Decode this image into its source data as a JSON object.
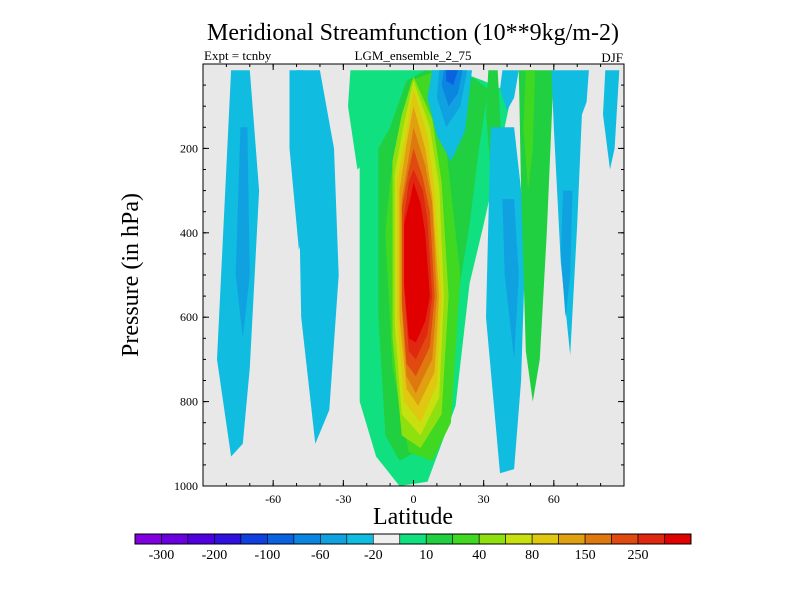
{
  "chart_data": {
    "type": "contour",
    "title": "Meridional Streamfunction (10**9kg/m-2)",
    "subtitle_left": "Expt = tcnby",
    "subtitle_center": "LGM_ensemble_2_75",
    "subtitle_right": "DJF",
    "xlabel": "Latitude",
    "ylabel": "Pressure (in hPa)",
    "xlim": [
      -90,
      90
    ],
    "ylim": [
      1000,
      0
    ],
    "xticks": [
      -60,
      -30,
      0,
      30,
      60
    ],
    "xtick_labels": [
      "-60",
      "-30",
      "0",
      "30",
      "60"
    ],
    "yticks": [
      200,
      400,
      600,
      800,
      1000
    ],
    "ytick_labels": [
      "200",
      "400",
      "600",
      "800",
      "1000"
    ],
    "background_color": "#e8e8e8",
    "colorbar": {
      "colors": [
        "#8000e0",
        "#6a00e0",
        "#5000e0",
        "#3010e0",
        "#1040e0",
        "#0a62e0",
        "#0a86e0",
        "#10a2e0",
        "#10bce0",
        "#f0f0f0",
        "#10e080",
        "#20d040",
        "#40d820",
        "#90e010",
        "#c8e010",
        "#e0c810",
        "#e0a010",
        "#e07810",
        "#e04a10",
        "#e02810",
        "#e00000"
      ],
      "labels": [
        "-300",
        "-200",
        "-100",
        "-60",
        "-20",
        "10",
        "40",
        "80",
        "150",
        "250"
      ]
    },
    "fields": [
      {
        "name": "sh-deep-negative-cell",
        "level": 8,
        "x": [
          -78,
          -70,
          -66,
          -70,
          -73,
          -78,
          -84
        ],
        "y": [
          15,
          15,
          300,
          720,
          900,
          930,
          700
        ]
      },
      {
        "name": "sh-deep-negative-core",
        "level": 7,
        "x": [
          -74,
          -71,
          -70,
          -73,
          -76
        ],
        "y": [
          150,
          150,
          500,
          650,
          500
        ]
      },
      {
        "name": "sh-mid-negative-cell",
        "level": 8,
        "x": [
          -50,
          -40,
          -34,
          -32,
          -36,
          -42,
          -48
        ],
        "y": [
          15,
          15,
          200,
          500,
          820,
          900,
          600
        ]
      },
      {
        "name": "sh-upper-negative-lobe",
        "level": 8,
        "x": [
          -53,
          -47,
          -43,
          -45,
          -49,
          -53
        ],
        "y": [
          15,
          15,
          220,
          370,
          440,
          200
        ]
      },
      {
        "name": "sh-upper-positive-lobe",
        "level": 10,
        "x": [
          -27,
          -15,
          -18,
          -24,
          -28
        ],
        "y": [
          15,
          15,
          220,
          250,
          100
        ]
      },
      {
        "name": "positive-band-l1",
        "level": 10,
        "x": [
          -23,
          -15,
          -5,
          3,
          18,
          30,
          42,
          36,
          30,
          24,
          18,
          6,
          -6,
          -16,
          -23
        ],
        "y": [
          70,
          15,
          15,
          15,
          15,
          40,
          70,
          230,
          380,
          520,
          810,
          990,
          1000,
          930,
          800
        ]
      },
      {
        "name": "positive-band-l2",
        "level": 11,
        "x": [
          -15,
          -10,
          -3,
          5,
          15,
          25,
          32,
          28,
          24,
          14,
          4,
          -6,
          -12,
          -15
        ],
        "y": [
          200,
          150,
          40,
          15,
          20,
          30,
          60,
          200,
          380,
          720,
          910,
          940,
          880,
          600
        ]
      },
      {
        "name": "positive-band-l3",
        "level": 12,
        "x": [
          -10,
          -6,
          -1,
          8,
          14,
          20,
          16,
          8,
          -2,
          -9,
          -12
        ],
        "y": [
          280,
          150,
          40,
          20,
          200,
          500,
          850,
          940,
          920,
          720,
          400
        ]
      },
      {
        "name": "positive-band-l4",
        "level": 13,
        "x": [
          -9,
          -5,
          0,
          8,
          12,
          15,
          12,
          3,
          -5,
          -9
        ],
        "y": [
          230,
          120,
          30,
          130,
          280,
          550,
          830,
          910,
          880,
          650
        ]
      },
      {
        "name": "positive-band-l5",
        "level": 14,
        "x": [
          -8,
          -4,
          0,
          7,
          11,
          13,
          11,
          3,
          -5,
          -8
        ],
        "y": [
          260,
          140,
          40,
          150,
          290,
          550,
          790,
          880,
          830,
          620
        ]
      },
      {
        "name": "positive-band-l6",
        "level": 15,
        "x": [
          -7,
          -3,
          0,
          6,
          9,
          12,
          10,
          3,
          -4,
          -7
        ],
        "y": [
          280,
          160,
          60,
          170,
          300,
          550,
          760,
          850,
          800,
          600
        ]
      },
      {
        "name": "positive-band-l7",
        "level": 16,
        "x": [
          -6,
          -3,
          0,
          5,
          8,
          11,
          9,
          2,
          -3,
          -6
        ],
        "y": [
          300,
          190,
          100,
          200,
          310,
          550,
          730,
          810,
          770,
          600
        ]
      },
      {
        "name": "positive-band-l8",
        "level": 17,
        "x": [
          -5,
          -2,
          0,
          5,
          8,
          10,
          8,
          1,
          -3,
          -5
        ],
        "y": [
          320,
          220,
          150,
          240,
          330,
          550,
          700,
          780,
          740,
          580
        ]
      },
      {
        "name": "positive-band-l9",
        "level": 18,
        "x": [
          -5,
          -2,
          0,
          4,
          7,
          9,
          7,
          1,
          -3,
          -5
        ],
        "y": [
          340,
          250,
          200,
          270,
          350,
          550,
          670,
          740,
          710,
          560
        ]
      },
      {
        "name": "positive-band-l10",
        "level": 19,
        "x": [
          -4,
          -2,
          0,
          4,
          6,
          8,
          6,
          1,
          -2,
          -4
        ],
        "y": [
          360,
          280,
          250,
          300,
          370,
          550,
          640,
          700,
          680,
          540
        ]
      },
      {
        "name": "positive-band-l11",
        "level": 20,
        "x": [
          -4,
          -1,
          0,
          3,
          5,
          7,
          5,
          1,
          -2,
          -4
        ],
        "y": [
          380,
          310,
          280,
          330,
          400,
          550,
          610,
          660,
          650,
          520
        ]
      },
      {
        "name": "nh-upper-negative-cell",
        "level": 8,
        "x": [
          8,
          25,
          22,
          16,
          10,
          6
        ],
        "y": [
          15,
          15,
          160,
          230,
          170,
          80
        ]
      },
      {
        "name": "nh-upper-negative-l2",
        "level": 7,
        "x": [
          11,
          23,
          20,
          14,
          10
        ],
        "y": [
          15,
          15,
          100,
          150,
          80
        ]
      },
      {
        "name": "nh-upper-negative-l3",
        "level": 6,
        "x": [
          13,
          21,
          19,
          15,
          12
        ],
        "y": [
          15,
          15,
          70,
          100,
          50
        ]
      },
      {
        "name": "nh-upper-negative-l4",
        "level": 5,
        "x": [
          14,
          19,
          17,
          14
        ],
        "y": [
          15,
          15,
          50,
          40
        ]
      },
      {
        "name": "nh-mid-positive-lobe",
        "level": 11,
        "x": [
          32,
          36,
          38,
          34,
          31
        ],
        "y": [
          15,
          15,
          230,
          320,
          120
        ]
      },
      {
        "name": "nh-lower-negative-cell",
        "level": 8,
        "x": [
          33,
          43,
          48,
          46,
          43,
          37,
          31
        ],
        "y": [
          150,
          150,
          400,
          750,
          960,
          970,
          600
        ]
      },
      {
        "name": "nh-lower-negative-core",
        "level": 7,
        "x": [
          38,
          43,
          45,
          43,
          39
        ],
        "y": [
          320,
          320,
          500,
          700,
          500
        ]
      },
      {
        "name": "nh-upper-negative-stripe",
        "level": 8,
        "x": [
          38,
          45,
          43,
          40,
          37
        ],
        "y": [
          15,
          15,
          80,
          110,
          60
        ]
      },
      {
        "name": "nh-high-positive-cell",
        "level": 11,
        "x": [
          45,
          60,
          57,
          54,
          51,
          48,
          46
        ],
        "y": [
          15,
          15,
          400,
          700,
          800,
          680,
          300
        ]
      },
      {
        "name": "nh-high-positive-core",
        "level": 12,
        "x": [
          48,
          52,
          51,
          49,
          47
        ],
        "y": [
          15,
          15,
          200,
          300,
          150
        ]
      },
      {
        "name": "nh-highlat-negative-cell",
        "level": 8,
        "x": [
          59,
          75,
          74,
          72,
          70,
          67,
          63,
          60
        ],
        "y": [
          15,
          15,
          90,
          120,
          380,
          690,
          470,
          150
        ]
      },
      {
        "name": "nh-highlat-negative-core",
        "level": 7,
        "x": [
          64,
          68,
          67,
          65,
          63
        ],
        "y": [
          300,
          300,
          500,
          600,
          450
        ]
      },
      {
        "name": "nh-polar-negative-stripe",
        "level": 8,
        "x": [
          82,
          88,
          86,
          84,
          81
        ],
        "y": [
          15,
          15,
          200,
          250,
          120
        ]
      }
    ]
  }
}
